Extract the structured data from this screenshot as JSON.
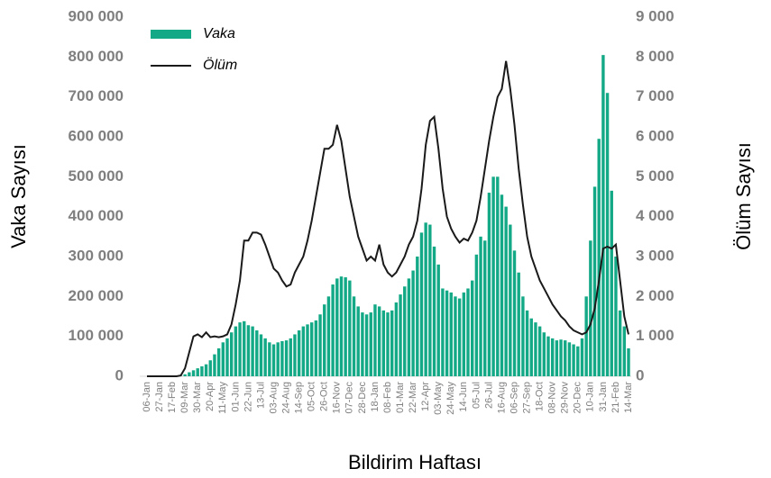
{
  "chart_data": {
    "type": "bar",
    "x_label": "Bildirim Haftası",
    "y_label": "Vaka Sayısı",
    "y2_label": "Ölüm Sayısı",
    "categories": [
      "06-Jan",
      null,
      null,
      "27-Jan",
      null,
      null,
      "17-Feb",
      null,
      null,
      "09-Mar",
      null,
      null,
      "30-Mar",
      null,
      null,
      "20-Apr",
      null,
      null,
      "11-May",
      null,
      null,
      "01-Jun",
      null,
      null,
      "22-Jun",
      null,
      null,
      "13-Jul",
      null,
      null,
      "03-Aug",
      null,
      null,
      "24-Aug",
      null,
      null,
      "14-Sep",
      null,
      null,
      "05-Oct",
      null,
      null,
      "26-Oct",
      null,
      null,
      "16-Nov",
      null,
      null,
      "07-Dec",
      null,
      null,
      "28-Dec",
      null,
      null,
      "18-Jan",
      null,
      null,
      "08-Feb",
      null,
      null,
      "01-Mar",
      null,
      null,
      "22-Mar",
      null,
      null,
      "12-Apr",
      null,
      null,
      "03-May",
      null,
      null,
      "24-May",
      null,
      null,
      "14-Jun",
      null,
      null,
      "05-Jul",
      null,
      null,
      "26-Jul",
      null,
      null,
      "16-Aug",
      null,
      null,
      "06-Sep",
      null,
      null,
      "27-Sep",
      null,
      null,
      "18-Oct",
      null,
      null,
      "08-Nov",
      null,
      null,
      "29-Nov",
      null,
      null,
      "20-Dec",
      null,
      null,
      "10-Jan",
      null,
      null,
      "31-Jan",
      null,
      null,
      "21-Feb",
      null,
      null,
      "14-Mar"
    ],
    "series": [
      {
        "name": "Vaka",
        "type": "bar",
        "color": "#14a986",
        "values": [
          0,
          0,
          0,
          0,
          0,
          0,
          0,
          0,
          1000,
          5000,
          10000,
          15000,
          20000,
          25000,
          30000,
          40000,
          55000,
          70000,
          85000,
          95000,
          110000,
          125000,
          135000,
          138000,
          128000,
          125000,
          115000,
          105000,
          95000,
          85000,
          80000,
          85000,
          88000,
          90000,
          95000,
          105000,
          115000,
          125000,
          130000,
          135000,
          140000,
          155000,
          180000,
          200000,
          230000,
          245000,
          250000,
          248000,
          240000,
          200000,
          175000,
          160000,
          155000,
          160000,
          180000,
          175000,
          165000,
          160000,
          165000,
          185000,
          205000,
          225000,
          245000,
          265000,
          300000,
          360000,
          385000,
          380000,
          325000,
          280000,
          220000,
          215000,
          210000,
          200000,
          195000,
          210000,
          220000,
          240000,
          305000,
          350000,
          340000,
          460000,
          500000,
          500000,
          455000,
          425000,
          380000,
          315000,
          260000,
          200000,
          165000,
          145000,
          135000,
          125000,
          110000,
          100000,
          95000,
          90000,
          92000,
          90000,
          85000,
          80000,
          75000,
          95000,
          200000,
          340000,
          475000,
          595000,
          805000,
          710000,
          465000,
          300000,
          165000,
          125000,
          70000
        ]
      },
      {
        "name": "Ölüm",
        "type": "line",
        "axis": "y2",
        "color": "#1a1a1a",
        "values": [
          0,
          0,
          0,
          0,
          0,
          0,
          0,
          0,
          20,
          200,
          600,
          1000,
          1050,
          980,
          1100,
          980,
          1000,
          980,
          1000,
          1050,
          1300,
          1800,
          2400,
          3400,
          3400,
          3600,
          3600,
          3550,
          3300,
          3000,
          2700,
          2600,
          2400,
          2250,
          2300,
          2600,
          2800,
          3000,
          3400,
          3900,
          4500,
          5100,
          5700,
          5700,
          5800,
          6300,
          5900,
          5200,
          4500,
          4000,
          3500,
          3200,
          2900,
          3000,
          2900,
          3300,
          2800,
          2600,
          2500,
          2600,
          2800,
          3000,
          3300,
          3500,
          3900,
          4700,
          5800,
          6400,
          6500,
          5700,
          4700,
          4000,
          3700,
          3500,
          3350,
          3450,
          3400,
          3600,
          3900,
          4500,
          5200,
          5900,
          6500,
          7000,
          7200,
          7900,
          7200,
          6300,
          5200,
          4300,
          3500,
          3000,
          2700,
          2400,
          2200,
          2000,
          1800,
          1650,
          1500,
          1400,
          1250,
          1150,
          1100,
          1050,
          1100,
          1300,
          1700,
          2400,
          3200,
          3250,
          3200,
          3300,
          2400,
          1500,
          1050
        ]
      }
    ],
    "ylim": [
      0,
      900000
    ],
    "yticks": [
      0,
      {
        "value": 100000,
        "label": "100 000"
      },
      {
        "value": 200000,
        "label": "200 000"
      },
      {
        "value": 300000,
        "label": "300 000"
      },
      {
        "value": 400000,
        "label": "400 000"
      },
      {
        "value": 500000,
        "label": "500 000"
      },
      {
        "value": 600000,
        "label": "600 000"
      },
      {
        "value": 700000,
        "label": "700 000"
      },
      {
        "value": 800000,
        "label": "800 000"
      },
      {
        "value": 900000,
        "label": "900 000"
      }
    ],
    "y2lim": [
      0,
      9000
    ],
    "y2ticks": [
      0,
      {
        "value": 1000,
        "label": "1 000"
      },
      {
        "value": 2000,
        "label": "2 000"
      },
      {
        "value": 3000,
        "label": "3 000"
      },
      {
        "value": 4000,
        "label": "4 000"
      },
      {
        "value": 5000,
        "label": "5 000"
      },
      {
        "value": 6000,
        "label": "6 000"
      },
      {
        "value": 7000,
        "label": "7 000"
      },
      {
        "value": 8000,
        "label": "8 000"
      },
      {
        "value": 9000,
        "label": "9 000"
      }
    ],
    "legend": "top-left",
    "grid": false
  }
}
